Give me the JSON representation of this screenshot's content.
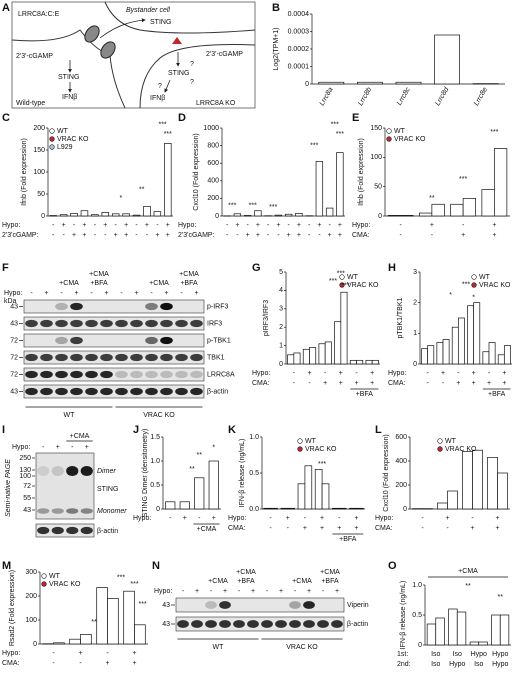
{
  "diagram": {
    "panel": "A",
    "channel": "LRRC8A:C:E",
    "bystander": "Bystander cell",
    "sting": [
      "STING",
      "STING",
      "STING"
    ],
    "cgamp": [
      "2'3'-cGAMP",
      "2'3'-cGAMP"
    ],
    "ifn": [
      "IFNβ",
      "IFNβ"
    ],
    "cells": [
      "Wild-type",
      "LRRC8A KO"
    ],
    "unknown": [
      "?",
      "?",
      "?"
    ]
  },
  "blots": [
    {
      "panel": "F",
      "unit": "kDa",
      "row_label": "Hypo:",
      "signs": [
        "-",
        "+",
        "-",
        "+",
        "-",
        "+",
        "-",
        "+",
        "-",
        "+",
        "-",
        "+"
      ],
      "treatments": [
        "+CMA",
        "+CMA",
        "+BFA",
        "+CMA",
        "+CMA",
        "+BFA"
      ],
      "bands": [
        "p-IRF3",
        "IRF3",
        "p-TBK1",
        "TBK1",
        "LRRC8A",
        "β-actin"
      ],
      "markers": [
        43,
        43,
        72,
        72,
        72,
        43
      ],
      "groups": [
        "WT",
        "VRAC KO"
      ]
    },
    {
      "panel": "I",
      "row_label": "Hypo:",
      "signs": [
        "-",
        "+",
        "-",
        "+"
      ],
      "treatments": [
        "+CMA"
      ],
      "side_label": "Semi-native PAGE",
      "markers": [
        250,
        130,
        100,
        72,
        55,
        43
      ],
      "bands": [
        "Dimer",
        "STING",
        "Monomer",
        "β-actin"
      ]
    },
    {
      "panel": "N",
      "row_label": "Hypo:",
      "signs": [
        "-",
        "+",
        "-",
        "+",
        "-",
        "+",
        "-",
        "+",
        "-",
        "+",
        "-",
        "+"
      ],
      "treatments": [
        "+CMA",
        "+CMA",
        "+BFA",
        "+CMA",
        "+CMA",
        "+BFA"
      ],
      "bands": [
        "Viperin",
        "β-actin"
      ],
      "markers": [
        43,
        43
      ],
      "groups": [
        "WT",
        "VRAC KO"
      ]
    }
  ],
  "chart_data": [
    {
      "panel": "B",
      "type": "bar",
      "y_label": "Log2(TPM+1)",
      "categories": [
        "Lrrc8a",
        "Lrrc8b",
        "Lrrc8c",
        "Lrrc8d",
        "Lrrc8e"
      ],
      "values": [
        1e-05,
        1e-05,
        1e-05,
        0.00028,
        2e-06
      ],
      "color": "#ffffff",
      "ylim": [
        0,
        0.0004
      ],
      "yticks": [
        0,
        0.0001,
        0.0002,
        0.0003,
        0.0004
      ]
    },
    {
      "panel": "C",
      "type": "bar",
      "y_label": "Ifnb (Fold expression)",
      "series": [
        {
          "name": "WT",
          "color": "#ffffff",
          "values": [
            1,
            3,
            6,
            12
          ]
        },
        {
          "name": "VRAC KO",
          "color": "#c0272d",
          "values": [
            3,
            8,
            5,
            5
          ]
        },
        {
          "name": "L929",
          "color": "#9ec5e8",
          "values": [
            2,
            22,
            10,
            165
          ]
        }
      ],
      "conditions": [
        {
          "label": "Hypo:",
          "signs": [
            "-",
            "+",
            "-",
            "+",
            "-",
            "+",
            "-",
            "+",
            "-",
            "+",
            "-",
            "+"
          ]
        },
        {
          "label": "2'3'cGAMP:",
          "signs": [
            "-",
            "-",
            "+",
            "+",
            "-",
            "-",
            "+",
            "+",
            "-",
            "-",
            "+",
            "+"
          ]
        }
      ],
      "ylim": [
        0,
        200
      ],
      "yticks": [
        0,
        50,
        100,
        150,
        200
      ],
      "annotations": [
        "*",
        "**",
        "***",
        "***"
      ]
    },
    {
      "panel": "D",
      "type": "bar",
      "y_label": "Cxcl10 (Fold expression)",
      "series": [
        {
          "color": "#ffffff",
          "values": [
            2,
            25,
            6,
            60
          ]
        },
        {
          "color": "#c0272d",
          "values": [
            3,
            10,
            20,
            30
          ]
        },
        {
          "color": "#9ec5e8",
          "values": [
            3,
            620,
            90,
            720
          ]
        }
      ],
      "conditions": [
        {
          "label": "Hypo:",
          "signs": [
            "-",
            "+",
            "-",
            "+",
            "-",
            "+",
            "-",
            "+",
            "-",
            "+",
            "-",
            "+"
          ]
        },
        {
          "label": "2'3'cGAMP:",
          "signs": [
            "-",
            "-",
            "+",
            "+",
            "-",
            "-",
            "+",
            "+",
            "-",
            "-",
            "+",
            "+"
          ]
        }
      ],
      "ylim": [
        0,
        1000
      ],
      "yticks": [
        0,
        200,
        400,
        600,
        800,
        1000
      ],
      "annotations": [
        "***",
        "***",
        "***",
        "***",
        "***",
        "***"
      ]
    },
    {
      "panel": "E",
      "type": "bar",
      "y_label": "Ifnb (Fold expression)",
      "series": [
        {
          "name": "WT",
          "color": "#ffffff",
          "values": [
            1,
            5,
            20,
            45
          ]
        },
        {
          "name": "VRAC KO",
          "color": "#c0272d",
          "values": [
            1,
            20,
            30,
            115
          ]
        }
      ],
      "conditions": [
        {
          "label": "Hypo:",
          "signs": [
            "-",
            "+",
            "-",
            "+"
          ]
        },
        {
          "label": "CMA:",
          "signs": [
            "-",
            "-",
            "+",
            "+"
          ]
        }
      ],
      "ylim": [
        0,
        150
      ],
      "yticks": [
        0,
        50,
        100,
        150
      ],
      "annotations": [
        "**",
        "***",
        "***"
      ]
    },
    {
      "panel": "G",
      "type": "bar",
      "y_label": "pIRF3/IRF3",
      "series": [
        {
          "name": "WT",
          "color": "#ffffff",
          "values": [
            0.5,
            0.8,
            1.1,
            2.3,
            0.2,
            0.2
          ]
        },
        {
          "name": "VRAC KO",
          "color": "#c0272d",
          "values": [
            0.6,
            0.9,
            1.2,
            3.9,
            0.2,
            0.2
          ]
        }
      ],
      "conditions": [
        {
          "label": "Hypo:",
          "signs": [
            "-",
            "+",
            "-",
            "+",
            "-",
            "+"
          ]
        },
        {
          "label": "CMA:",
          "signs": [
            "-",
            "-",
            "+",
            "+",
            "+",
            "+"
          ]
        }
      ],
      "group_label": "+BFA",
      "ylim": [
        0,
        5
      ],
      "yticks": [
        0,
        1,
        2,
        3,
        4,
        5
      ],
      "annotations": [
        "***",
        "***",
        "***"
      ]
    },
    {
      "panel": "H",
      "type": "bar",
      "y_label": "pTBK1/TBK1",
      "series": [
        {
          "name": "WT",
          "color": "#ffffff",
          "values": [
            0.5,
            0.7,
            1.2,
            1.9,
            0.4,
            0.3
          ]
        },
        {
          "name": "VRAC KO",
          "color": "#c0272d",
          "values": [
            0.6,
            0.8,
            1.5,
            2.0,
            0.7,
            0.6
          ]
        }
      ],
      "conditions": [
        {
          "label": "Hypo:",
          "signs": [
            "-",
            "+",
            "-",
            "+",
            "-",
            "+"
          ]
        },
        {
          "label": "CMA:",
          "signs": [
            "-",
            "-",
            "+",
            "+",
            "+",
            "+"
          ]
        }
      ],
      "group_label": "+BFA",
      "ylim": [
        0,
        3
      ],
      "yticks": [
        0,
        1,
        2,
        3
      ],
      "annotations": [
        "*",
        "***",
        "*"
      ]
    },
    {
      "panel": "J",
      "type": "bar",
      "y_label": "STING Dimer (densitometry)",
      "values": [
        0.15,
        0.15,
        0.65,
        1.0
      ],
      "color": "#ffffff",
      "conditions": [
        {
          "label": "Hypo:",
          "signs": [
            "-",
            "+",
            "-",
            "+"
          ]
        }
      ],
      "group_label": "+CMA",
      "ylim": [
        0,
        1.5
      ],
      "yticks": [
        0,
        0.5,
        {
          "value": 1,
          "label": "1.0"
        },
        1.5
      ],
      "annotations": [
        "**",
        "**",
        "*"
      ]
    },
    {
      "panel": "K",
      "type": "bar",
      "y_label": "IFN-β release (ng/mL)",
      "series": [
        {
          "name": "WT",
          "color": "#ffffff",
          "values": [
            0.01,
            0.01,
            0.35,
            0.55,
            0.01,
            0.01
          ]
        },
        {
          "name": "VRAC KO",
          "color": "#c0272d",
          "values": [
            0.01,
            0.01,
            0.6,
            0.35,
            0.01,
            0.01
          ]
        }
      ],
      "conditions": [
        {
          "label": "Hypo:",
          "signs": [
            "-",
            "+",
            "-",
            "+",
            "-",
            "+"
          ]
        },
        {
          "label": "CMA:",
          "signs": [
            "-",
            "-",
            "+",
            "+",
            "+",
            "+"
          ]
        }
      ],
      "group_label": "+BFA",
      "ylim": [
        0,
        1
      ],
      "yticks": [
        {
          "value": 0,
          "label": "0.0"
        },
        0.5,
        {
          "value": 1,
          "label": "1.0"
        }
      ],
      "annotations": [
        "***"
      ]
    },
    {
      "panel": "L",
      "type": "bar",
      "y_label": "Cxcl10 (Fold expression)",
      "series": [
        {
          "name": "WT",
          "color": "#ffffff",
          "values": [
            3,
            50,
            480,
            430
          ]
        },
        {
          "name": "VRAC KO",
          "color": "#c0272d",
          "values": [
            3,
            150,
            490,
            300
          ]
        }
      ],
      "conditions": [
        {
          "label": "Hypo:",
          "signs": [
            "-",
            "+",
            "-",
            "+"
          ]
        },
        {
          "label": "CMA:",
          "signs": [
            "-",
            "-",
            "+",
            "+"
          ]
        }
      ],
      "ylim": [
        0,
        600
      ],
      "yticks": [
        0,
        200,
        400,
        600
      ]
    },
    {
      "panel": "M",
      "type": "bar",
      "y_label": "Rsad2 (Fold expression)",
      "series": [
        {
          "name": "WT",
          "color": "#ffffff",
          "values": [
            1,
            20,
            235,
            220
          ]
        },
        {
          "name": "VRAC KO",
          "color": "#c0272d",
          "values": [
            5,
            40,
            190,
            80
          ]
        }
      ],
      "conditions": [
        {
          "label": "Hypo:",
          "signs": [
            "-",
            "+",
            "-",
            "+"
          ]
        },
        {
          "label": "CMA:",
          "signs": [
            "-",
            "-",
            "+",
            "+"
          ]
        }
      ],
      "ylim": [
        0,
        300
      ],
      "yticks": [
        0,
        100,
        200,
        300
      ],
      "annotations": [
        "**",
        "***",
        "***",
        "***"
      ]
    },
    {
      "panel": "O",
      "type": "bar",
      "title": "+CMA",
      "y_label": "IFN-β release (ng/mL)",
      "series": [
        {
          "color": "#ffffff",
          "values": [
            0.35,
            0.6,
            0.05,
            0.5
          ]
        },
        {
          "color": "#c0272d",
          "values": [
            0.45,
            0.55,
            0.05,
            0.5
          ]
        }
      ],
      "conditions": [
        {
          "label": "1st:",
          "signs": [
            "Iso",
            "Iso",
            "Hypo",
            "Hypo"
          ]
        },
        {
          "label": "2nd:",
          "signs": [
            "Iso",
            "Hypo",
            "Iso",
            "Hypo"
          ]
        }
      ],
      "ylim": [
        0,
        1
      ],
      "yticks": [
        0,
        0.5,
        {
          "value": 1,
          "label": "1.0"
        }
      ],
      "annotations": [
        "**",
        "**"
      ]
    }
  ]
}
